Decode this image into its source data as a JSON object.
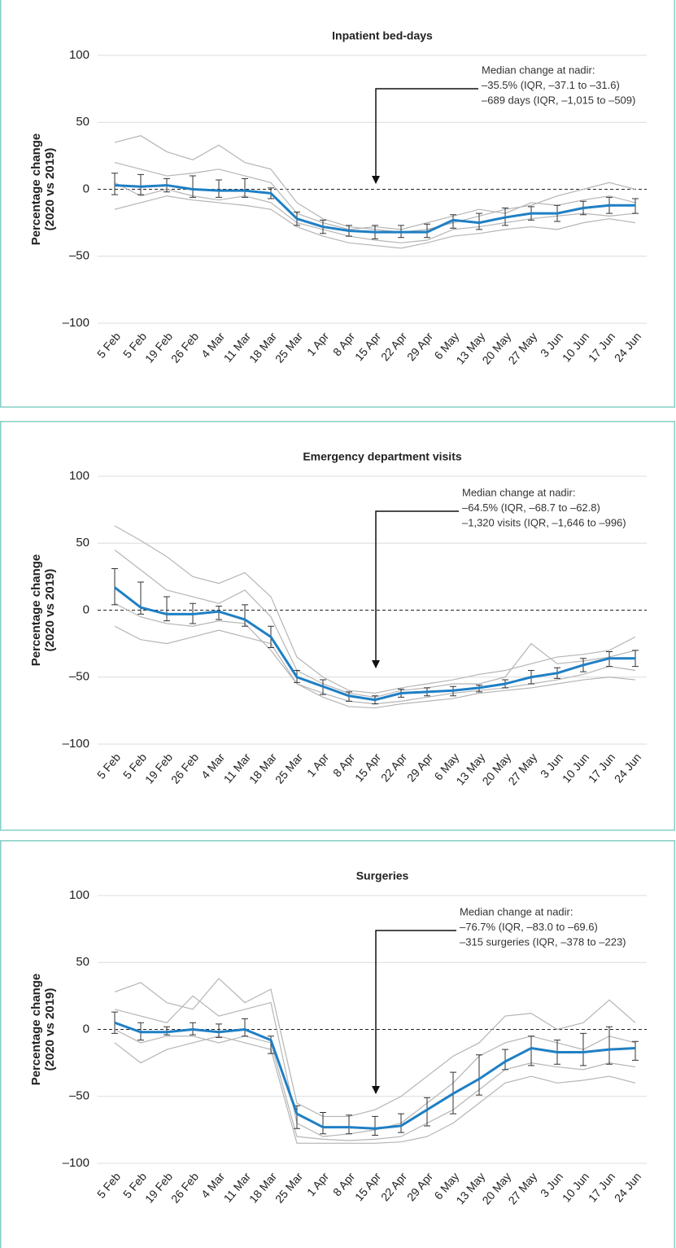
{
  "chart_data": [
    {
      "type": "line",
      "title": "Inpatient bed-days",
      "y_label": [
        "Percentage change",
        "(2020 vs 2019)"
      ],
      "annotation": [
        "Median change at nadir:",
        "–35.5% (IQR, –37.1 to –31.6)",
        "–689 days (IQR, –1,015 to –509)"
      ],
      "categories": [
        "5 Feb",
        "5 Feb",
        "19 Feb",
        "26 Feb",
        "4 Mar",
        "11 Mar",
        "18 Mar",
        "25 Mar",
        "1 Apr",
        "8 Apr",
        "15 Apr",
        "22 Apr",
        "29 Apr",
        "6 May",
        "13 May",
        "20 May",
        "27 May",
        "3 Jun",
        "10 Jun",
        "17 Jun",
        "24 Jun"
      ],
      "ylim": [
        -100,
        100
      ],
      "yticks": [
        {
          "value": -100,
          "label": "–100"
        },
        {
          "value": -50,
          "label": "–50"
        },
        0,
        50,
        100
      ],
      "grid": true,
      "background_series": [
        {
          "color": "#b5b5b5",
          "values": [
            35,
            40,
            28,
            22,
            33,
            20,
            15,
            -10,
            -22,
            -28,
            -30,
            -32,
            -30,
            -25,
            -20,
            -15,
            -12,
            -5,
            0,
            5,
            0
          ]
        },
        {
          "color": "#b5b5b5",
          "values": [
            -15,
            -10,
            -5,
            -8,
            -10,
            -12,
            -15,
            -28,
            -35,
            -40,
            -42,
            -44,
            -40,
            -35,
            -33,
            -30,
            -28,
            -30,
            -25,
            -22,
            -25
          ]
        },
        {
          "color": "#b5b5b5",
          "values": [
            20,
            15,
            10,
            12,
            15,
            10,
            5,
            -18,
            -25,
            -30,
            -28,
            -30,
            -25,
            -20,
            -15,
            -18,
            -10,
            -12,
            -8,
            -5,
            -10
          ]
        },
        {
          "color": "#b5b5b5",
          "values": [
            5,
            -5,
            0,
            -5,
            -8,
            -5,
            -10,
            -25,
            -30,
            -35,
            -38,
            -40,
            -38,
            -30,
            -28,
            -25,
            -22,
            -20,
            -18,
            -20,
            -18
          ]
        }
      ],
      "series": [
        {
          "color": "#1f7fc4",
          "values": [
            3,
            2,
            3,
            0,
            -1,
            -1,
            -3,
            -22,
            -28,
            -31,
            -32,
            -32,
            -32,
            -23,
            -25,
            -21,
            -18,
            -18,
            -14,
            -12,
            -12
          ],
          "iqr_low": [
            -4,
            -4,
            -2,
            -6,
            -6,
            -6,
            -7,
            -27,
            -33,
            -35,
            -37,
            -36,
            -36,
            -29,
            -30,
            -27,
            -23,
            -24,
            -19,
            -18,
            -18
          ],
          "iqr_high": [
            12,
            11,
            8,
            10,
            7,
            8,
            1,
            -17,
            -23,
            -27,
            -27,
            -27,
            -26,
            -19,
            -18,
            -14,
            -13,
            -12,
            -9,
            -6,
            -7
          ]
        }
      ]
    },
    {
      "type": "line",
      "title": "Emergency department visits",
      "y_label": [
        "Percentage change",
        "(2020 vs 2019)"
      ],
      "annotation": [
        "Median change at nadir:",
        "–64.5% (IQR, –68.7 to –62.8)",
        "–1,320 visits (IQR, –1,646 to –996)"
      ],
      "categories": [
        "5 Feb",
        "5 Feb",
        "19 Feb",
        "26 Feb",
        "4 Mar",
        "11 Mar",
        "18 Mar",
        "25 Mar",
        "1 Apr",
        "8 Apr",
        "15 Apr",
        "22 Apr",
        "29 Apr",
        "6 May",
        "13 May",
        "20 May",
        "27 May",
        "3 Jun",
        "10 Jun",
        "17 Jun",
        "24 Jun"
      ],
      "ylim": [
        -100,
        100
      ],
      "yticks": [
        {
          "value": -100,
          "label": "–100"
        },
        {
          "value": -50,
          "label": "–50"
        },
        0,
        50,
        100
      ],
      "grid": true,
      "background_series": [
        {
          "color": "#b5b5b5",
          "values": [
            63,
            52,
            40,
            25,
            20,
            28,
            10,
            -35,
            -50,
            -60,
            -62,
            -58,
            -55,
            -52,
            -48,
            -45,
            -40,
            -35,
            -33,
            -30,
            -20
          ]
        },
        {
          "color": "#b5b5b5",
          "values": [
            -12,
            -22,
            -25,
            -20,
            -15,
            -20,
            -25,
            -55,
            -65,
            -72,
            -73,
            -70,
            -68,
            -66,
            -62,
            -60,
            -58,
            -55,
            -52,
            -50,
            -52
          ]
        },
        {
          "color": "#b5b5b5",
          "values": [
            45,
            30,
            15,
            10,
            5,
            15,
            -5,
            -45,
            -55,
            -62,
            -65,
            -60,
            -58,
            -55,
            -55,
            -50,
            -25,
            -40,
            -38,
            -35,
            -30
          ]
        },
        {
          "color": "#b5b5b5",
          "values": [
            5,
            -5,
            -10,
            -12,
            -8,
            -10,
            -30,
            -55,
            -62,
            -68,
            -70,
            -68,
            -65,
            -62,
            -60,
            -58,
            -55,
            -52,
            -48,
            -42,
            -45
          ]
        }
      ],
      "series": [
        {
          "color": "#1f7fc4",
          "values": [
            17,
            2,
            -3,
            -3,
            -1,
            -7,
            -20,
            -50,
            -57,
            -64,
            -67,
            -62,
            -61,
            -60,
            -58,
            -55,
            -50,
            -47,
            -41,
            -36,
            -36
          ],
          "iqr_low": [
            4,
            -3,
            -8,
            -10,
            -7,
            -12,
            -28,
            -54,
            -63,
            -68,
            -70,
            -65,
            -64,
            -64,
            -61,
            -58,
            -55,
            -51,
            -46,
            -42,
            -42
          ],
          "iqr_high": [
            31,
            21,
            10,
            5,
            3,
            4,
            -12,
            -45,
            -52,
            -61,
            -64,
            -59,
            -58,
            -57,
            -56,
            -52,
            -45,
            -43,
            -36,
            -31,
            -30
          ]
        }
      ]
    },
    {
      "type": "line",
      "title": "Surgeries",
      "y_label": [
        "Percentage change",
        "(2020 vs 2019)"
      ],
      "annotation": [
        "Median change at nadir:",
        "–76.7% (IQR, –83.0 to –69.6)",
        "–315 surgeries (IQR, –378 to –223)"
      ],
      "categories": [
        "5 Feb",
        "5 Feb",
        "19 Feb",
        "26 Feb",
        "4 Mar",
        "11 Mar",
        "18 Mar",
        "25 Mar",
        "1 Apr",
        "8 Apr",
        "15 Apr",
        "22 Apr",
        "29 Apr",
        "6 May",
        "13 May",
        "20 May",
        "27 May",
        "3 Jun",
        "10 Jun",
        "17 Jun",
        "24 Jun"
      ],
      "ylim": [
        -100,
        100
      ],
      "yticks": [
        {
          "value": -100,
          "label": "–100"
        },
        {
          "value": -50,
          "label": "–50"
        },
        0,
        50,
        100
      ],
      "grid": true,
      "background_series": [
        {
          "color": "#b5b5b5",
          "values": [
            28,
            35,
            20,
            15,
            38,
            20,
            30,
            -55,
            -65,
            -65,
            -60,
            -50,
            -35,
            -20,
            -10,
            10,
            12,
            0,
            5,
            22,
            5
          ]
        },
        {
          "color": "#b5b5b5",
          "values": [
            -10,
            -25,
            -15,
            -10,
            -5,
            -10,
            -15,
            -85,
            -85,
            -85,
            -85,
            -84,
            -80,
            -70,
            -55,
            -40,
            -35,
            -40,
            -38,
            -35,
            -40
          ]
        },
        {
          "color": "#b5b5b5",
          "values": [
            15,
            10,
            5,
            25,
            10,
            15,
            20,
            -70,
            -80,
            -78,
            -75,
            -70,
            -55,
            -40,
            -20,
            -10,
            -5,
            -10,
            -15,
            -5,
            -10
          ]
        },
        {
          "color": "#b5b5b5",
          "values": [
            0,
            -10,
            -5,
            -5,
            -10,
            -5,
            -10,
            -80,
            -82,
            -83,
            -82,
            -80,
            -70,
            -60,
            -45,
            -30,
            -25,
            -28,
            -30,
            -25,
            -28
          ]
        }
      ],
      "series": [
        {
          "color": "#1f7fc4",
          "values": [
            5,
            -2,
            -2,
            0,
            -2,
            0,
            -8,
            -63,
            -73,
            -73,
            -74,
            -72,
            -60,
            -48,
            -37,
            -24,
            -14,
            -17,
            -17,
            -15,
            -14
          ],
          "iqr_low": [
            -3,
            -8,
            -4,
            -4,
            -6,
            -5,
            -18,
            -74,
            -78,
            -78,
            -79,
            -77,
            -72,
            -63,
            -49,
            -30,
            -27,
            -26,
            -27,
            -26,
            -23
          ],
          "iqr_high": [
            13,
            5,
            2,
            5,
            4,
            8,
            -5,
            -57,
            -62,
            -64,
            -65,
            -63,
            -51,
            -32,
            -19,
            -15,
            -5,
            -8,
            -3,
            2,
            -9
          ]
        }
      ]
    }
  ]
}
